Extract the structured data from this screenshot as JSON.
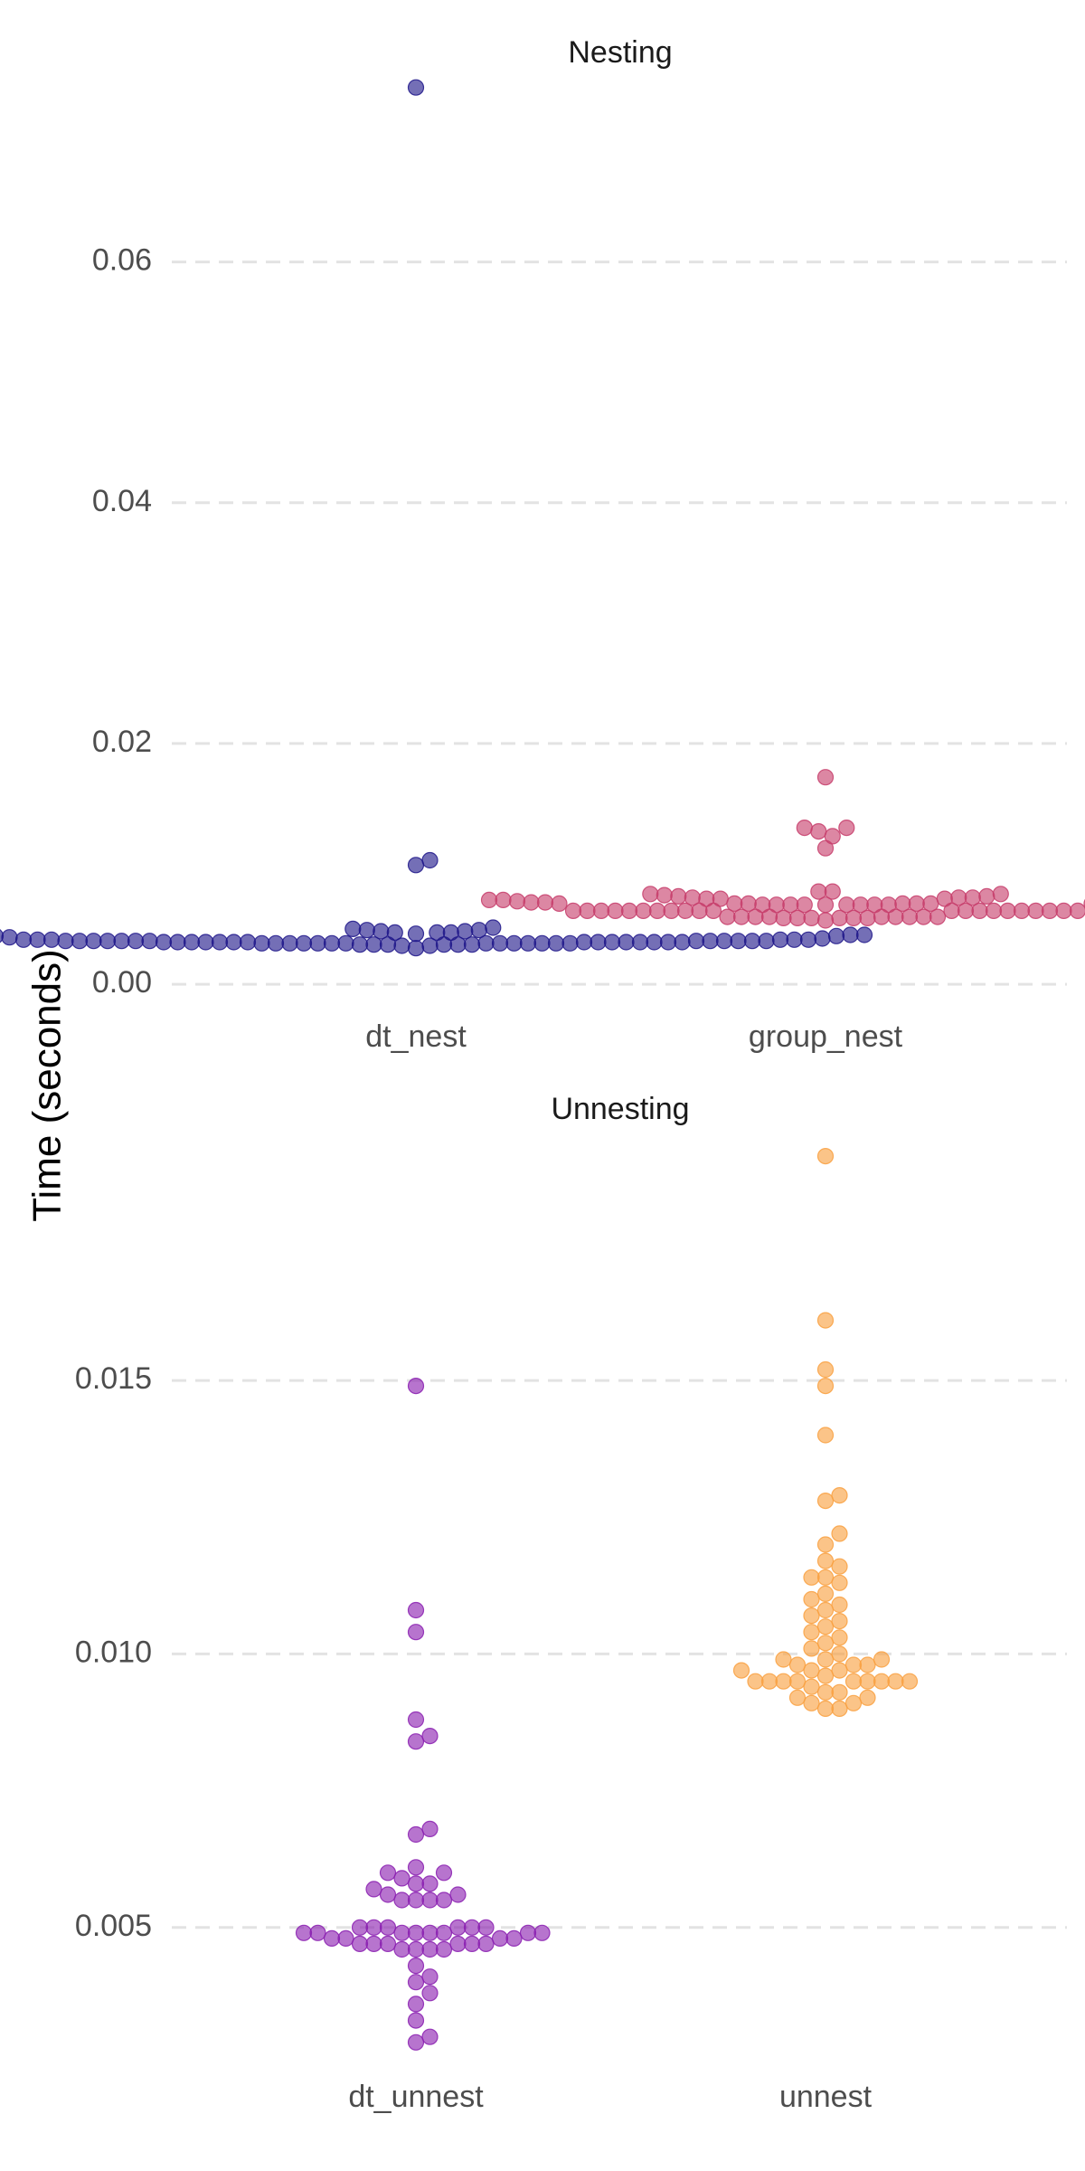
{
  "y_axis_title": "Time (seconds)",
  "chart_data": [
    {
      "type": "scatter",
      "title": "Nesting",
      "categories": [
        "dt_nest",
        "group_nest"
      ],
      "y_ticks": [
        0.0,
        0.02,
        0.04,
        0.06
      ],
      "y_tick_labels": [
        "0.00",
        "0.02",
        "0.04",
        "0.06"
      ],
      "ylim": [
        -0.003,
        0.075
      ],
      "grid": true,
      "series": [
        {
          "category": "dt_nest",
          "color": "#1f1689",
          "values": [
            0.0745,
            0.0103,
            0.0099,
            0.0047,
            0.0046,
            0.0045,
            0.0045,
            0.0044,
            0.0044,
            0.0043,
            0.0043,
            0.0043,
            0.0042,
            0.0042,
            0.0041,
            0.0041,
            0.0041,
            0.004,
            0.004,
            0.0039,
            0.0038,
            0.0037,
            0.0036,
            0.0036,
            0.0036,
            0.0037,
            0.0037,
            0.0036,
            0.0036,
            0.0036,
            0.0036,
            0.0036,
            0.0035,
            0.0035,
            0.0035,
            0.0035,
            0.0035,
            0.0035,
            0.0035,
            0.0035,
            0.0035,
            0.0035,
            0.0035,
            0.0035,
            0.0035,
            0.0035,
            0.0035,
            0.0036,
            0.0036,
            0.0036,
            0.0036,
            0.0036,
            0.0037,
            0.0037,
            0.0037,
            0.0034,
            0.0034,
            0.0034,
            0.0034,
            0.0034,
            0.0034,
            0.0034,
            0.0033,
            0.0033,
            0.0033,
            0.0033,
            0.0033,
            0.0033,
            0.0034,
            0.0034,
            0.0034,
            0.0034,
            0.0034,
            0.0034,
            0.0034,
            0.003,
            0.0032,
            0.0032
          ]
        },
        {
          "category": "group_nest",
          "color": "#c73d6b",
          "values": [
            0.0172,
            0.013,
            0.013,
            0.0127,
            0.0123,
            0.0113,
            0.0077,
            0.0077,
            0.0075,
            0.0075,
            0.0074,
            0.0073,
            0.0073,
            0.0072,
            0.0072,
            0.0072,
            0.0071,
            0.0071,
            0.0071,
            0.007,
            0.007,
            0.007,
            0.007,
            0.0069,
            0.0069,
            0.0068,
            0.0068,
            0.0068,
            0.0067,
            0.0067,
            0.0067,
            0.0067,
            0.0066,
            0.0066,
            0.0066,
            0.0066,
            0.0066,
            0.0066,
            0.0066,
            0.0066,
            0.0066,
            0.0067,
            0.0067,
            0.0067,
            0.0068,
            0.0068,
            0.0061,
            0.0061,
            0.0061,
            0.0061,
            0.0061,
            0.0061,
            0.0061,
            0.0061,
            0.0061,
            0.0061,
            0.0061,
            0.0061,
            0.0061,
            0.0061,
            0.0061,
            0.0061,
            0.0061,
            0.0061,
            0.0061,
            0.0061,
            0.0061,
            0.0056,
            0.0056,
            0.0056,
            0.0056,
            0.0056,
            0.0055,
            0.0055,
            0.0055,
            0.0055,
            0.0055,
            0.0055,
            0.0056,
            0.0056,
            0.0056,
            0.0056,
            0.0053
          ]
        }
      ]
    },
    {
      "type": "scatter",
      "title": "Unnesting",
      "categories": [
        "dt_unnest",
        "unnest"
      ],
      "y_ticks": [
        0.005,
        0.01,
        0.015
      ],
      "y_tick_labels": [
        "0.005",
        "0.010",
        "0.015"
      ],
      "ylim": [
        0.0024,
        0.0194
      ],
      "grid": true,
      "series": [
        {
          "category": "dt_unnest",
          "color": "#8a1fb0",
          "values": [
            0.0149,
            0.0108,
            0.0104,
            0.0088,
            0.0085,
            0.0084,
            0.0068,
            0.0067,
            0.0061,
            0.006,
            0.006,
            0.0059,
            0.0058,
            0.0058,
            0.0057,
            0.0056,
            0.0056,
            0.0055,
            0.0055,
            0.0055,
            0.0055,
            0.005,
            0.005,
            0.005,
            0.005,
            0.005,
            0.005,
            0.0049,
            0.0049,
            0.0049,
            0.0049,
            0.0049,
            0.0049,
            0.0049,
            0.0049,
            0.0048,
            0.0048,
            0.0048,
            0.0048,
            0.0047,
            0.0047,
            0.0047,
            0.0047,
            0.0047,
            0.0047,
            0.0046,
            0.0046,
            0.0046,
            0.0046,
            0.0043,
            0.0041,
            0.004,
            0.0038,
            0.0036,
            0.0033,
            0.003,
            0.0029
          ]
        },
        {
          "category": "unnest",
          "color": "#f9a03f",
          "values": [
            0.0191,
            0.0161,
            0.0152,
            0.0149,
            0.014,
            0.0129,
            0.0128,
            0.0122,
            0.012,
            0.0117,
            0.0116,
            0.0114,
            0.0114,
            0.0113,
            0.0111,
            0.011,
            0.0109,
            0.0108,
            0.0107,
            0.0106,
            0.0105,
            0.0104,
            0.0103,
            0.0102,
            0.0101,
            0.01,
            0.0099,
            0.0099,
            0.0099,
            0.0098,
            0.0098,
            0.0098,
            0.0097,
            0.0097,
            0.0097,
            0.0096,
            0.0095,
            0.0095,
            0.0095,
            0.0095,
            0.0095,
            0.0095,
            0.0095,
            0.0095,
            0.0095,
            0.0094,
            0.0093,
            0.0093,
            0.0092,
            0.0092,
            0.0091,
            0.0091,
            0.009,
            0.009
          ]
        }
      ]
    }
  ]
}
